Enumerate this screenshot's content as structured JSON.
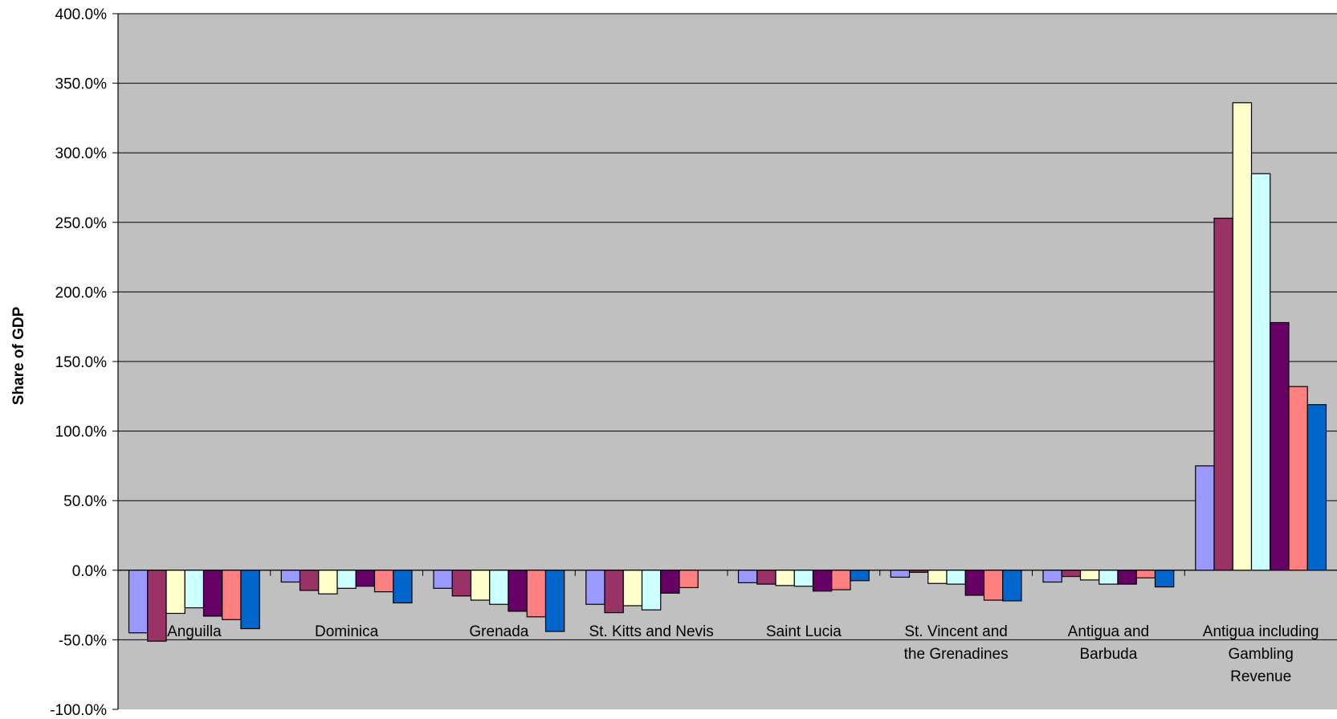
{
  "chart_data": {
    "type": "bar",
    "title": "",
    "xlabel": "",
    "ylabel": "Share of GDP",
    "ylim": [
      -100,
      400
    ],
    "ytick_step": 50,
    "ytick_labels": [
      "-100.0%",
      "-50.0%",
      "0.0%",
      "50.0%",
      "100.0%",
      "150.0%",
      "200.0%",
      "250.0%",
      "300.0%",
      "350.0%",
      "400.0%"
    ],
    "grid": true,
    "legend": "none",
    "categories": [
      [
        "Anguilla"
      ],
      [
        "Dominica"
      ],
      [
        "Grenada"
      ],
      [
        "St. Kitts and Nevis"
      ],
      [
        "Saint Lucia"
      ],
      [
        "St. Vincent and",
        "the Grenadines"
      ],
      [
        "Antigua and",
        "Barbuda"
      ],
      [
        "Antigua including",
        "Gambling",
        "Revenue"
      ]
    ],
    "series": [
      {
        "color": "#9999ff",
        "values": [
          -45,
          -8.5,
          -13,
          -24.5,
          -9,
          -5,
          -8.5,
          75
        ]
      },
      {
        "color": "#993366",
        "values": [
          -51,
          -14.5,
          -18.5,
          -30.5,
          -10,
          -1.5,
          -4.5,
          253
        ]
      },
      {
        "color": "#ffffcc",
        "values": [
          -31,
          -17,
          -21.5,
          -25.5,
          -11,
          -9.5,
          -7,
          336
        ]
      },
      {
        "color": "#ccffff",
        "values": [
          -27,
          -13,
          -24.5,
          -28.5,
          -11.5,
          -10,
          -10,
          285
        ]
      },
      {
        "color": "#660066",
        "values": [
          -33,
          -11.5,
          -29.5,
          -16.5,
          -15,
          -18,
          -10,
          178
        ]
      },
      {
        "color": "#ff8080",
        "values": [
          -35.5,
          -15.5,
          -33.5,
          -12.5,
          -14,
          -21.5,
          -5.5,
          132
        ]
      },
      {
        "color": "#0066cc",
        "values": [
          -42,
          -23.5,
          -44,
          null,
          -7.5,
          -22,
          -12,
          119
        ]
      }
    ],
    "colors": {
      "plot_background": "#c0c0c0",
      "gridline": "#000000",
      "bar_border": "#000000"
    }
  }
}
